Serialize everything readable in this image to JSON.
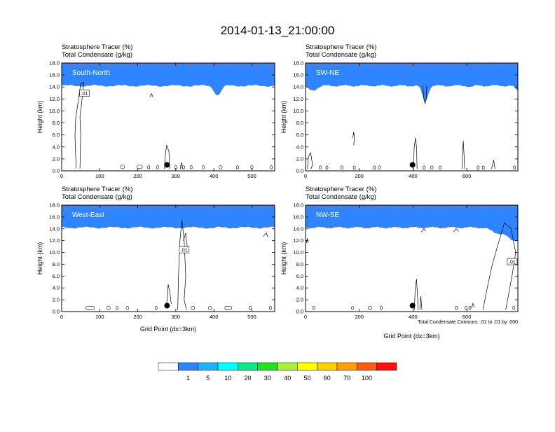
{
  "page": {
    "title": "2014-01-13_21:00:00"
  },
  "chart_data": [
    {
      "type": "heatmap",
      "panel_label": "South-North",
      "header_line1": "Stratosphere Tracer   (%)",
      "header_line2": "Total Condensate   (g/kg)",
      "ylabel": "Height (km)",
      "xlabel": "",
      "xlim": [
        0,
        560
      ],
      "ylim": [
        0,
        18
      ],
      "xticks": [
        "0",
        "100",
        "200",
        "300",
        "400",
        "500"
      ],
      "yticks": [
        "0.0",
        "2.0",
        "4.0",
        "6.0",
        "8.0",
        "10.0",
        "12.0",
        "14.0",
        "16.0",
        "18.0"
      ],
      "xtick_values": [
        0,
        100,
        200,
        300,
        400,
        500
      ],
      "contour_label": ".01",
      "contour_label_pos": [
        60,
        12.9
      ],
      "marker": [
        277,
        1.0
      ],
      "tracer_base_km": 14.2,
      "dips": [
        [
          410,
          12.6,
          12
        ],
        [
          200,
          15.3,
          6
        ]
      ],
      "cloud_contours": [
        [
          [
            38,
            0.4
          ],
          [
            35,
            6
          ],
          [
            37,
            8.8
          ],
          [
            42,
            11
          ],
          [
            50,
            14.5
          ],
          [
            58,
            14.8
          ],
          [
            55,
            13
          ],
          [
            52,
            11
          ],
          [
            48,
            9
          ],
          [
            50,
            6
          ],
          [
            48,
            0.4
          ]
        ],
        [
          [
            270,
            0.3
          ],
          [
            272,
            2.5
          ],
          [
            276,
            4.3
          ],
          [
            282,
            3.2
          ],
          [
            284,
            0.3
          ]
        ],
        [
          [
            312,
            0.3
          ],
          [
            314,
            1.4
          ],
          [
            319,
            0.3
          ]
        ],
        [
          [
            232,
            12.3
          ],
          [
            236,
            12.9
          ],
          [
            240,
            12.3
          ]
        ]
      ],
      "blobs": [
        [
          160,
          0.65,
          10
        ],
        [
          205,
          0.65,
          14
        ],
        [
          228,
          0.6,
          4
        ],
        [
          252,
          0.6,
          6
        ],
        [
          300,
          0.6,
          6
        ],
        [
          320,
          0.6,
          7
        ],
        [
          340,
          0.6,
          5
        ],
        [
          372,
          0.6,
          6
        ],
        [
          418,
          0.6,
          8
        ],
        [
          462,
          0.6,
          5
        ],
        [
          500,
          0.6,
          6
        ],
        [
          550,
          0.6,
          4
        ]
      ]
    },
    {
      "type": "heatmap",
      "panel_label": "SW-NE",
      "header_line1": "Stratosphere Tracer   (%)",
      "header_line2": "Total Condensate   (g/kg)",
      "ylabel": "Height (km)",
      "xlabel": "",
      "xlim": [
        0,
        790
      ],
      "ylim": [
        0,
        18
      ],
      "xticks": [
        "0",
        "200",
        "400",
        "600"
      ],
      "yticks": [
        "0.0",
        "2.0",
        "4.0",
        "6.0",
        "8.0",
        "10.0",
        "12.0",
        "14.0",
        "16.0",
        "18.0"
      ],
      "xtick_values": [
        0,
        200,
        400,
        600
      ],
      "contour_label": "",
      "contour_label_pos": null,
      "marker": [
        398,
        1.0
      ],
      "tracer_base_km": 14.2,
      "dips": [
        [
          445,
          11.5,
          14
        ],
        [
          25,
          13.4,
          22
        ],
        [
          615,
          14.0,
          10
        ],
        [
          790,
          13.4,
          14
        ]
      ],
      "cloud_contours": [
        [
          [
            436,
            14.2
          ],
          [
            440,
            12.0
          ],
          [
            445,
            11.2
          ],
          [
            449,
            12.0
          ],
          [
            451,
            14.2
          ]
        ],
        [
          [
            402,
            0.3
          ],
          [
            404,
            3.8
          ],
          [
            409,
            5.5
          ],
          [
            413,
            4.0
          ],
          [
            415,
            0.3
          ]
        ],
        [
          [
            176,
            5.5
          ],
          [
            179,
            6.5
          ],
          [
            182,
            5.5
          ],
          [
            179,
            4.3
          ]
        ],
        [
          [
            582,
            0.3
          ],
          [
            584,
            2.8
          ],
          [
            587,
            5.0
          ],
          [
            590,
            2.5
          ],
          [
            592,
            0.3
          ]
        ],
        [
          [
            7,
            0.3
          ],
          [
            11,
            2.4
          ],
          [
            19,
            3.0
          ],
          [
            26,
            1.0
          ],
          [
            20,
            0.3
          ]
        ],
        [
          [
            692,
            0.3
          ],
          [
            700,
            1.8
          ],
          [
            705,
            0.3
          ]
        ]
      ],
      "blobs": [
        [
          55,
          0.55,
          9
        ],
        [
          78,
          0.55,
          5
        ],
        [
          135,
          0.55,
          8
        ],
        [
          180,
          0.55,
          5
        ],
        [
          255,
          0.55,
          6
        ],
        [
          275,
          0.55,
          9
        ],
        [
          440,
          0.55,
          5
        ],
        [
          470,
          0.55,
          9
        ],
        [
          500,
          0.55,
          6
        ],
        [
          640,
          0.55,
          4
        ],
        [
          660,
          0.55,
          5
        ],
        [
          776,
          0.55,
          5
        ]
      ]
    },
    {
      "type": "heatmap",
      "panel_label": "West-East",
      "header_line1": "Stratosphere Tracer   (%)",
      "header_line2": "Total Condensate   (g/kg)",
      "ylabel": "Height (km)",
      "xlabel": "Grid Point (dx=3km)",
      "xlim": [
        0,
        560
      ],
      "ylim": [
        0,
        18
      ],
      "xticks": [
        "0",
        "100",
        "200",
        "300",
        "400",
        "500"
      ],
      "yticks": [
        "0.0",
        "2.0",
        "4.0",
        "6.0",
        "8.0",
        "10.0",
        "12.0",
        "14.0",
        "16.0",
        "18.0"
      ],
      "xtick_values": [
        0,
        100,
        200,
        300,
        400,
        500
      ],
      "contour_label": ".01",
      "contour_label_pos": [
        322,
        10.4
      ],
      "marker": [
        277,
        1.0
      ],
      "tracer_base_km": 14.2,
      "dips": [
        [
          395,
          14.1,
          10
        ]
      ],
      "cloud_contours": [
        [
          [
            305,
            0.3
          ],
          [
            307,
            6
          ],
          [
            311,
            12
          ],
          [
            316,
            15.5
          ],
          [
            322,
            12
          ],
          [
            326,
            6
          ],
          [
            322,
            2
          ],
          [
            328,
            0.3
          ]
        ],
        [
          [
            276,
            1.2
          ],
          [
            280,
            4.6
          ],
          [
            285,
            3
          ],
          [
            288,
            1.3
          ]
        ],
        [
          [
            320,
            12
          ],
          [
            326,
            13.3
          ],
          [
            330,
            11
          ]
        ],
        [
          [
            530,
            12.7
          ],
          [
            538,
            13.3
          ],
          [
            542,
            12.6
          ]
        ]
      ],
      "blobs": [
        [
          75,
          0.6,
          22
        ],
        [
          123,
          0.6,
          9
        ],
        [
          145,
          0.6,
          4
        ],
        [
          173,
          0.6,
          7
        ],
        [
          248,
          0.6,
          5
        ],
        [
          345,
          0.6,
          9
        ],
        [
          390,
          0.6,
          8
        ],
        [
          438,
          0.6,
          18
        ],
        [
          495,
          0.6,
          4
        ],
        [
          548,
          0.6,
          4
        ]
      ]
    },
    {
      "type": "heatmap",
      "panel_label": "NW-SE",
      "header_line1": "Stratosphere Tracer   (%)",
      "header_line2": "Total Condensate   (g/kg)",
      "ylabel": "Height (km)",
      "xlabel": "Grid Point (dx=3km)",
      "xlim": [
        0,
        790
      ],
      "ylim": [
        0,
        18
      ],
      "xticks": [
        "0",
        "200",
        "400",
        "600"
      ],
      "yticks": [
        "0.0",
        "2.0",
        "4.0",
        "6.0",
        "8.0",
        "10.0",
        "12.0",
        "14.0",
        "16.0",
        "18.0"
      ],
      "xtick_values": [
        0,
        200,
        400,
        600
      ],
      "contour_label": ".01",
      "contour_label_pos": [
        769,
        8.4
      ],
      "marker": [
        398,
        1.0
      ],
      "tracer_base_km": 14.2,
      "dips": [
        [
          775,
          12.0,
          38
        ],
        [
          710,
          13.4,
          30
        ]
      ],
      "cloud_contours": [
        [
          [
            660,
            0.3
          ],
          [
            676,
            4
          ],
          [
            695,
            8
          ],
          [
            720,
            12
          ],
          [
            740,
            15
          ],
          [
            765,
            14
          ],
          [
            782,
            10
          ],
          [
            768,
            6
          ],
          [
            752,
            2
          ],
          [
            745,
            0.3
          ]
        ],
        [
          [
            405,
            0.3
          ],
          [
            408,
            3.8
          ],
          [
            413,
            5.5
          ],
          [
            417,
            2.5
          ],
          [
            419,
            0.3
          ]
        ],
        [
          [
            425,
            0.3
          ],
          [
            429,
            2.6
          ],
          [
            433,
            0.3
          ]
        ],
        [
          [
            618,
            0.6
          ],
          [
            623,
            1.4
          ],
          [
            628,
            0.7
          ]
        ],
        [
          [
            3,
            11.6
          ],
          [
            7,
            12.4
          ],
          [
            10,
            11.6
          ]
        ],
        [
          [
            430,
            13.4
          ],
          [
            440,
            14.0
          ],
          [
            448,
            13.6
          ]
        ],
        [
          [
            550,
            13.4
          ],
          [
            560,
            14.0
          ],
          [
            570,
            13.6
          ]
        ]
      ],
      "blobs": [
        [
          30,
          0.6,
          8
        ],
        [
          175,
          0.6,
          9
        ],
        [
          240,
          0.6,
          12
        ],
        [
          280,
          0.6,
          5
        ],
        [
          560,
          0.6,
          6
        ],
        [
          597,
          0.6,
          9
        ],
        [
          610,
          0.6,
          5
        ],
        [
          775,
          0.6,
          8
        ]
      ]
    }
  ],
  "footnote": "Total Condensate Contours: .01 to .01 by .000",
  "colorbar": {
    "labels": [
      "1",
      "5",
      "10",
      "20",
      "30",
      "40",
      "50",
      "60",
      "70",
      "100"
    ],
    "colors": [
      "#ffffff",
      "#2e85ff",
      "#1eb3ff",
      "#00ffff",
      "#10e68a",
      "#20e020",
      "#a8f03a",
      "#ffff00",
      "#ffd000",
      "#ffa000",
      "#ff5a14",
      "#ff0d0d"
    ]
  }
}
